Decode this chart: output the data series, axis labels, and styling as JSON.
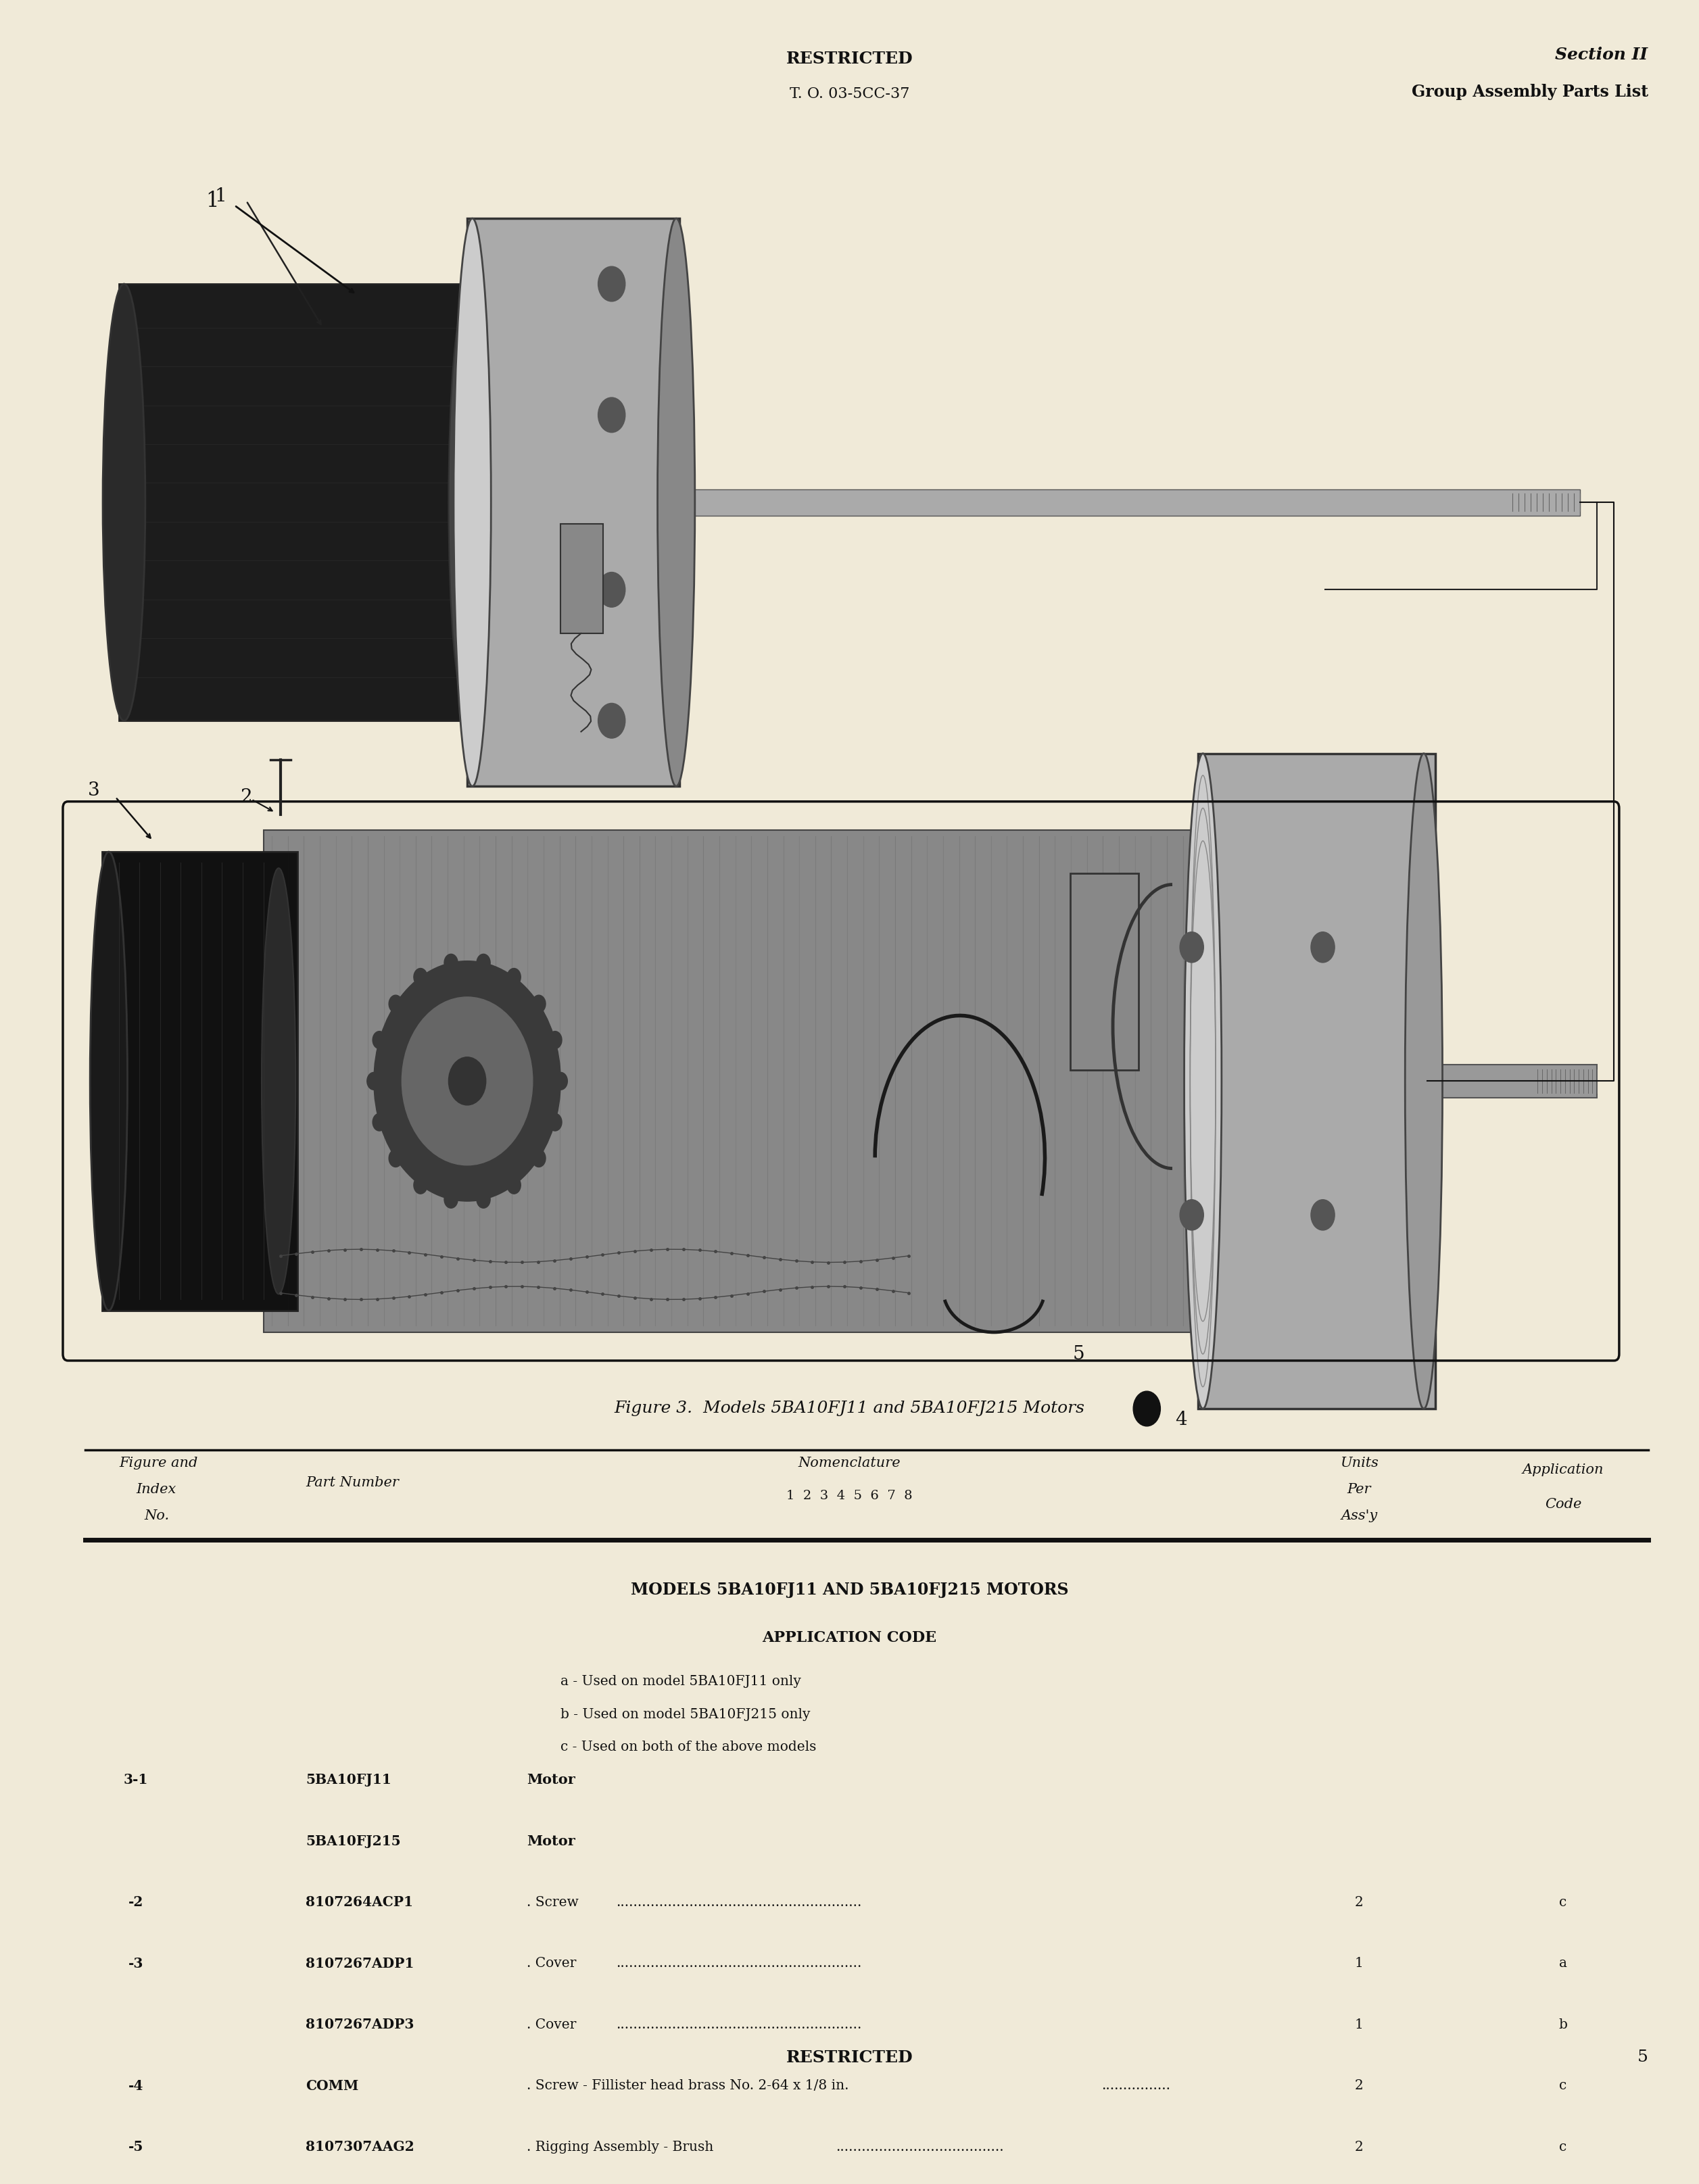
{
  "page_bg": "#f0ead8",
  "header_center_line1": "RESTRICTED",
  "header_center_line2": "T. O. 03-5CC-37",
  "header_right_line1": "Section II",
  "header_right_line2": "Group Assembly Parts List",
  "figure_caption": "Figure 3.  Models 5BA10FJ11 and 5BA10FJ215 Motors",
  "nomenclature_sub": "1  2  3  4  5  6  7  8",
  "section_title": "MODELS 5BA10FJ11 AND 5BA10FJ215 MOTORS",
  "app_code_title": "APPLICATION CODE",
  "app_codes": [
    "a - Used on model 5BA10FJ11 only",
    "b - Used on model 5BA10FJ215 only",
    "c - Used on both of the above models"
  ],
  "parts": [
    {
      "index": "3-1",
      "part_number": "5BA10FJ11",
      "nomenclature": "Motor",
      "dots": false,
      "units": "",
      "app_code": ""
    },
    {
      "index": "",
      "part_number": "5BA10FJ215",
      "nomenclature": "Motor",
      "dots": false,
      "units": "",
      "app_code": ""
    },
    {
      "index": "-2",
      "part_number": "8107264ACP1",
      "nomenclature": ". Screw",
      "dots": true,
      "units": "2",
      "app_code": "c"
    },
    {
      "index": "-3",
      "part_number": "8107267ADP1",
      "nomenclature": ". Cover",
      "dots": true,
      "units": "1",
      "app_code": "a"
    },
    {
      "index": "",
      "part_number": "8107267ADP3",
      "nomenclature": ". Cover",
      "dots": true,
      "units": "1",
      "app_code": "b"
    },
    {
      "index": "-4",
      "part_number": "COMM",
      "nomenclature": ". Screw - Fillister head brass No. 2-64 x 1/8 in.",
      "dots": true,
      "units": "2",
      "app_code": "c"
    },
    {
      "index": "-5",
      "part_number": "8107307AAG2",
      "nomenclature": ". Rigging Assembly - Brush",
      "dots": true,
      "units": "2",
      "app_code": "c"
    }
  ],
  "footer_text": "RESTRICTED",
  "page_number": "5",
  "text_color": "#111111",
  "line_color": "#111111"
}
